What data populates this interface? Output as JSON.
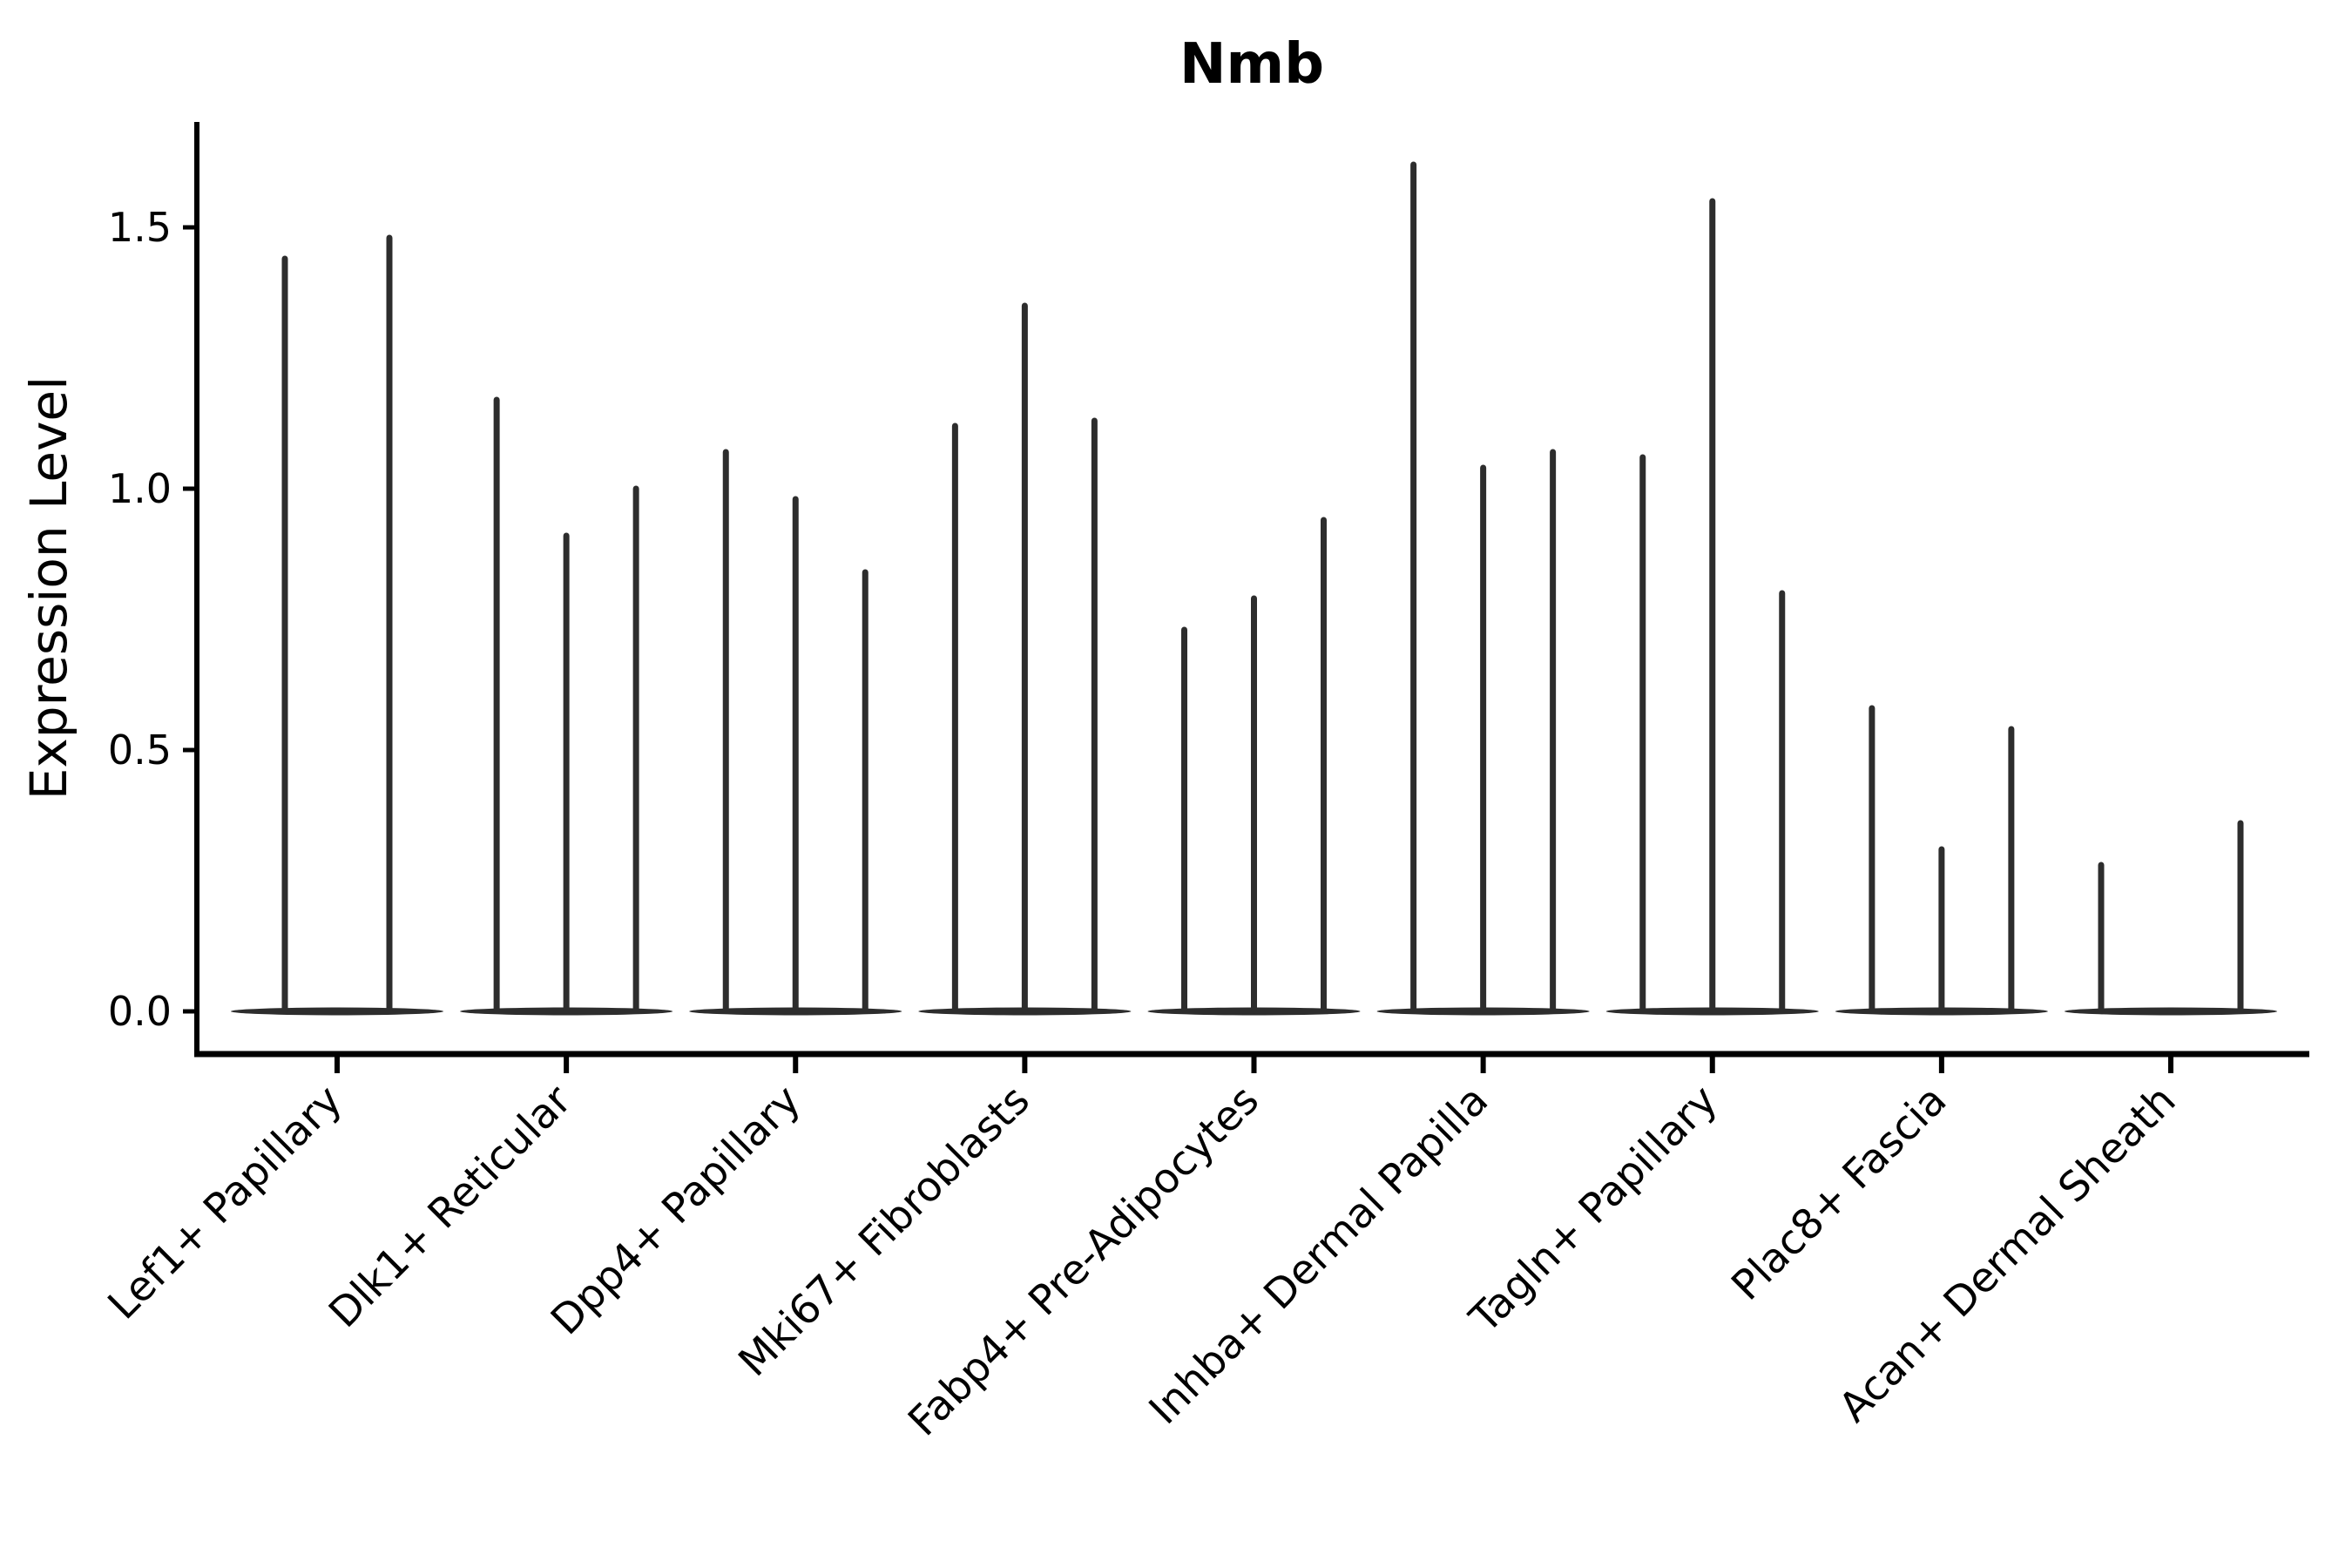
{
  "chart_data": {
    "type": "violin",
    "title": "Nmb",
    "xlabel": "",
    "ylabel": "Expression Level",
    "yticks": [
      "0.0",
      "0.5",
      "1.0",
      "1.5"
    ],
    "ylim": [
      -0.08,
      1.7
    ],
    "grid": false,
    "legend": false,
    "categories": [
      "Lef1+ Papillary",
      "Dlk1+ Reticular",
      "Dpp4+ Papillary",
      "Mki67+ Fibroblasts",
      "Fabp4+ Pre-Adipocytes",
      "Inhba+ Dermal Papilla",
      "Tagln+ Papillary",
      "Plac8+ Fascia",
      "Acan+ Dermal Sheath"
    ],
    "series": [
      {
        "category": "Lef1+ Papillary",
        "violin_max_values": [
          1.44,
          1.48
        ]
      },
      {
        "category": "Dlk1+ Reticular",
        "violin_max_values": [
          1.17,
          0.91,
          1.0
        ]
      },
      {
        "category": "Dpp4+ Papillary",
        "violin_max_values": [
          1.07,
          0.98,
          0.84
        ]
      },
      {
        "category": "Mki67+ Fibroblasts",
        "violin_max_values": [
          1.12,
          1.35,
          1.13
        ]
      },
      {
        "category": "Fabp4+ Pre-Adipocytes",
        "violin_max_values": [
          0.73,
          0.79,
          0.94
        ]
      },
      {
        "category": "Inhba+ Dermal Papilla",
        "violin_max_values": [
          1.62,
          1.04,
          1.07
        ]
      },
      {
        "category": "Tagln+ Papillary",
        "violin_max_values": [
          1.06,
          1.55,
          0.8
        ]
      },
      {
        "category": "Plac8+ Fascia",
        "violin_max_values": [
          0.58,
          0.31,
          0.54
        ]
      },
      {
        "category": "Acan+ Dermal Sheath",
        "violin_max_values": [
          0.28,
          null,
          0.36
        ]
      }
    ],
    "colors": {
      "violin": "#2d2d2d",
      "axis": "#000000",
      "text": "#000000",
      "background": "#ffffff"
    }
  }
}
